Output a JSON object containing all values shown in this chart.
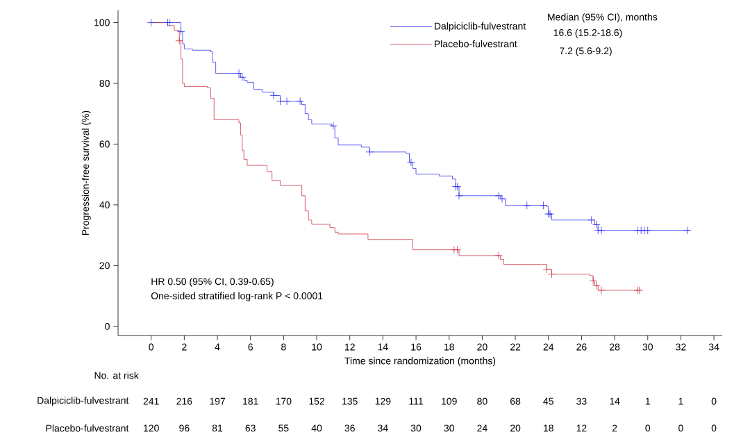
{
  "chart_data": {
    "type": "step",
    "xlabel": "Time since randomization (months)",
    "ylabel": "Progression-free survival (%)",
    "xlim": [
      -2,
      34.5
    ],
    "ylim": [
      -3,
      104
    ],
    "xticks": [
      0,
      2,
      4,
      6,
      8,
      10,
      12,
      14,
      16,
      18,
      20,
      22,
      24,
      26,
      28,
      30,
      32,
      34
    ],
    "yticks": [
      0,
      20,
      40,
      60,
      80,
      100
    ],
    "grid": false,
    "legend": "top right",
    "line_style": "solid",
    "series": [
      {
        "name": "Dalpiciclib-fulvestrant",
        "color": "#3333ee",
        "x": [
          0,
          1.8,
          1.9,
          2.0,
          2.5,
          3.6,
          3.7,
          3.9,
          5.4,
          5.6,
          5.8,
          6.2,
          6.7,
          7.4,
          7.8,
          9.1,
          9.3,
          9.5,
          9.7,
          10.9,
          11.1,
          11.3,
          12.7,
          13.2,
          15.4,
          15.6,
          15.8,
          16.0,
          17.4,
          18.2,
          18.4,
          18.6,
          20.9,
          21.1,
          21.4,
          23.9,
          24.0,
          24.2,
          26.6,
          26.8,
          27.0,
          32.5
        ],
        "values": [
          100,
          97,
          93,
          91.3,
          90.9,
          90.4,
          87,
          83.3,
          82,
          81,
          80.3,
          78,
          77.1,
          76,
          74.1,
          73,
          70,
          68,
          66.6,
          66,
          62,
          59.7,
          59,
          57.4,
          57,
          54,
          52,
          50.1,
          49.5,
          48.5,
          46,
          43.0,
          43,
          42,
          39.8,
          39.5,
          37,
          35,
          35,
          33.5,
          31.6,
          31.6
        ]
      },
      {
        "name": "Placebo-fulvestrant",
        "color": "#cc3344",
        "x": [
          0,
          1.0,
          1.4,
          1.7,
          1.8,
          1.9,
          2.0,
          3.4,
          3.6,
          3.8,
          5.3,
          5.4,
          5.5,
          5.6,
          5.8,
          7.0,
          7.3,
          7.8,
          9.1,
          9.3,
          9.5,
          9.7,
          10.8,
          11.1,
          11.3,
          13.1,
          15.8,
          18.6,
          21.1,
          21.3,
          23.9,
          24.2,
          26.5,
          26.7,
          26.8,
          27.0,
          29.5
        ],
        "values": [
          100,
          99,
          97.5,
          94,
          88,
          80,
          79,
          78.5,
          75,
          68,
          67,
          63,
          58,
          55,
          53,
          51,
          48,
          46.4,
          43,
          38,
          35,
          33.6,
          32.5,
          31,
          30.4,
          28.6,
          25.2,
          23.3,
          22,
          20.4,
          18.8,
          17.2,
          16.7,
          15,
          13.5,
          11.9,
          11.9
        ]
      },
      {
        "color": "#3333ee",
        "type": "scatter",
        "marker": "cross",
        "x": [
          0,
          1.0,
          1.1,
          1.8,
          5.3,
          5.5,
          7.4,
          7.8,
          8.2,
          9.0,
          11.0,
          13.2,
          15.7,
          18.4,
          18.5,
          18.6,
          21.0,
          21.2,
          22.7,
          23.7,
          24.0,
          24.1,
          26.6,
          26.9,
          27.0,
          27.2,
          29.4,
          29.6,
          29.8,
          30.0,
          32.4
        ],
        "values": [
          100,
          100,
          100,
          97,
          83.3,
          82,
          76,
          74.1,
          74.1,
          74.1,
          66,
          57.4,
          54,
          46,
          46,
          43,
          43,
          42,
          39.8,
          39.8,
          37,
          37,
          35,
          33.5,
          31.6,
          31.6,
          31.6,
          31.6,
          31.6,
          31.6,
          31.6
        ]
      },
      {
        "color": "#cc3344",
        "type": "scatter",
        "marker": "cross",
        "x": [
          1.7,
          18.3,
          18.5,
          21.0,
          23.9,
          24.2,
          26.7,
          26.9,
          27.2,
          29.4,
          29.5
        ],
        "values": [
          94,
          25.2,
          25.2,
          23.3,
          18.8,
          17.2,
          15,
          13.5,
          11.9,
          11.9,
          11.9
        ]
      }
    ],
    "annotations": [
      "HR 0.50 (95% CI, 0.39-0.65)",
      "One-sided stratified log-rank P < 0.0001",
      "Median (95% CI), months",
      "16.6 (15.2-18.6)",
      "7.2 (5.6-9.2)",
      "No. at risk",
      "Dalpiciclib-fulvestrant",
      "241",
      "216",
      "197",
      "181",
      "170",
      "152",
      "135",
      "129",
      "111",
      "109",
      "80",
      "68",
      "45",
      "33",
      "14",
      "1",
      "1",
      "0",
      "Placebo-fulvestrant",
      "120",
      "96",
      "81",
      "63",
      "55",
      "40",
      "36",
      "34",
      "30",
      "30",
      "24",
      "20",
      "18",
      "12",
      "2",
      "0",
      "0",
      "0"
    ]
  }
}
